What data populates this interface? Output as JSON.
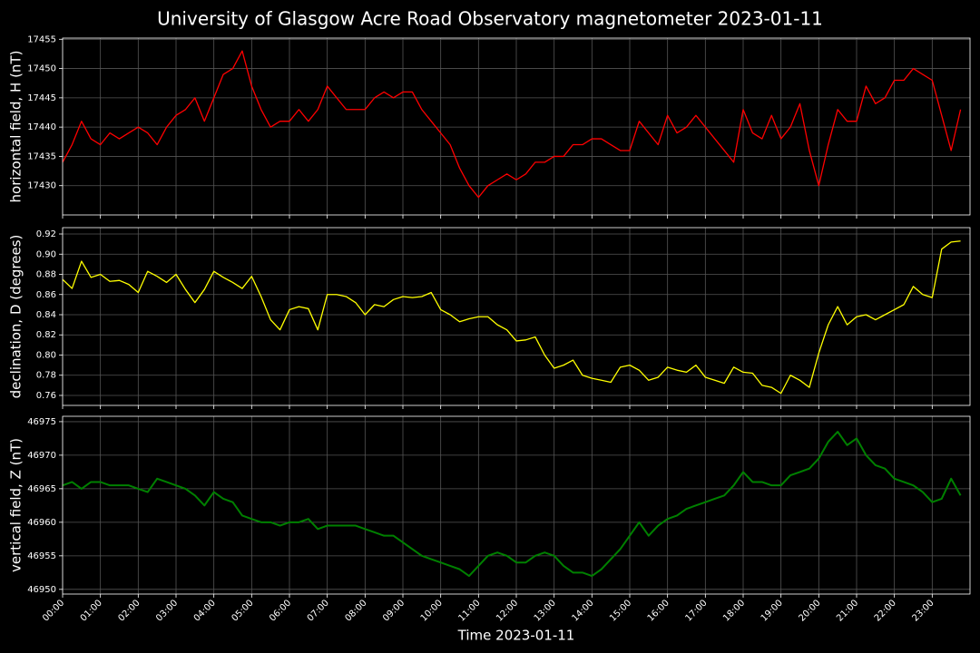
{
  "chart_data": {
    "type": "line",
    "title": "University of Glasgow Acre Road Observatory magnetometer 2023-01-11",
    "xlabel": "Time 2023-01-11",
    "x": [
      0,
      0.25,
      0.5,
      0.75,
      1,
      1.25,
      1.5,
      1.75,
      2,
      2.25,
      2.5,
      2.75,
      3,
      3.25,
      3.5,
      3.75,
      4,
      4.25,
      4.5,
      4.75,
      5,
      5.25,
      5.5,
      5.75,
      6,
      6.25,
      6.5,
      6.75,
      7,
      7.25,
      7.5,
      7.75,
      8,
      8.25,
      8.5,
      8.75,
      9,
      9.25,
      9.5,
      9.75,
      10,
      10.25,
      10.5,
      10.75,
      11,
      11.25,
      11.5,
      11.75,
      12,
      12.25,
      12.5,
      12.75,
      13,
      13.25,
      13.5,
      13.75,
      14,
      14.25,
      14.5,
      14.75,
      15,
      15.25,
      15.5,
      15.75,
      16,
      16.25,
      16.5,
      16.75,
      17,
      17.25,
      17.5,
      17.75,
      18,
      18.25,
      18.5,
      18.75,
      19,
      19.25,
      19.5,
      19.75,
      20,
      20.25,
      20.5,
      20.75,
      21,
      21.25,
      21.5,
      21.75,
      22,
      22.25,
      22.5,
      22.75,
      23,
      23.25,
      23.5,
      23.75
    ],
    "xlim": [
      0,
      24
    ],
    "xticks": [
      {
        "value": 0,
        "label": "00:00"
      },
      {
        "value": 1,
        "label": "01:00"
      },
      {
        "value": 2,
        "label": "02:00"
      },
      {
        "value": 3,
        "label": "03:00"
      },
      {
        "value": 4,
        "label": "04:00"
      },
      {
        "value": 5,
        "label": "05:00"
      },
      {
        "value": 6,
        "label": "06:00"
      },
      {
        "value": 7,
        "label": "07:00"
      },
      {
        "value": 8,
        "label": "08:00"
      },
      {
        "value": 9,
        "label": "09:00"
      },
      {
        "value": 10,
        "label": "10:00"
      },
      {
        "value": 11,
        "label": "11:00"
      },
      {
        "value": 12,
        "label": "12:00"
      },
      {
        "value": 13,
        "label": "13:00"
      },
      {
        "value": 14,
        "label": "14:00"
      },
      {
        "value": 15,
        "label": "15:00"
      },
      {
        "value": 16,
        "label": "16:00"
      },
      {
        "value": 17,
        "label": "17:00"
      },
      {
        "value": 18,
        "label": "18:00"
      },
      {
        "value": 19,
        "label": "19:00"
      },
      {
        "value": 20,
        "label": "20:00"
      },
      {
        "value": 21,
        "label": "21:00"
      },
      {
        "value": 22,
        "label": "22:00"
      },
      {
        "value": 23,
        "label": "23:00"
      }
    ],
    "grid": true,
    "panels": [
      {
        "ylabel": "horizontal field, H (nT)",
        "ylim": [
          17425,
          17455.2
        ],
        "yticks": [
          17430,
          17435,
          17440,
          17445,
          17450,
          17455
        ],
        "series": [
          {
            "color": "#ff0000",
            "values": [
              17434,
              17437,
              17441,
              17438,
              17437,
              17439,
              17438,
              17439,
              17440,
              17439,
              17437,
              17440,
              17442,
              17443,
              17445,
              17441,
              17445,
              17449,
              17450,
              17453,
              17447,
              17443,
              17440,
              17441,
              17441,
              17443,
              17441,
              17443,
              17447,
              17445,
              17443,
              17443,
              17443,
              17445,
              17446,
              17445,
              17446,
              17446,
              17443,
              17441,
              17439,
              17437,
              17433,
              17430,
              17428,
              17430,
              17431,
              17432,
              17431,
              17432,
              17434,
              17434,
              17435,
              17435,
              17437,
              17437,
              17438,
              17438,
              17437,
              17436,
              17436,
              17441,
              17439,
              17437,
              17442,
              17439,
              17440,
              17442,
              17440,
              17438,
              17436,
              17434,
              17443,
              17439,
              17438,
              17442,
              17438,
              17440,
              17444,
              17436,
              17430,
              17437,
              17443,
              17441,
              17441,
              17447,
              17444,
              17445,
              17448,
              17448,
              17450,
              17449,
              17448,
              17442,
              17436,
              17443
            ]
          }
        ]
      },
      {
        "ylabel": "declination, D (degrees)",
        "ylim": [
          0.7501,
          0.9263
        ],
        "yticks": [
          0.76,
          0.78,
          {
            "value": 0.8,
            "label": "0.80"
          },
          0.82,
          0.84,
          0.86,
          0.88,
          {
            "value": 0.9,
            "label": "0.90"
          },
          0.92
        ],
        "series": [
          {
            "color": "#ffff00",
            "values": [
              0.875,
              0.866,
              0.893,
              0.877,
              0.88,
              0.873,
              0.874,
              0.87,
              0.862,
              0.883,
              0.878,
              0.872,
              0.88,
              0.865,
              0.852,
              0.865,
              0.883,
              0.877,
              0.872,
              0.866,
              0.878,
              0.858,
              0.835,
              0.825,
              0.845,
              0.848,
              0.846,
              0.825,
              0.86,
              0.86,
              0.858,
              0.852,
              0.84,
              0.85,
              0.848,
              0.855,
              0.858,
              0.857,
              0.858,
              0.862,
              0.845,
              0.84,
              0.833,
              0.836,
              0.838,
              0.838,
              0.83,
              0.825,
              0.814,
              0.815,
              0.818,
              0.8,
              0.787,
              0.79,
              0.795,
              0.78,
              0.777,
              0.775,
              0.773,
              0.788,
              0.79,
              0.785,
              0.775,
              0.778,
              0.788,
              0.785,
              0.783,
              0.79,
              0.778,
              0.775,
              0.772,
              0.788,
              0.783,
              0.782,
              0.77,
              0.768,
              0.762,
              0.78,
              0.775,
              0.768,
              0.802,
              0.83,
              0.848,
              0.83,
              0.838,
              0.84,
              0.835,
              0.84,
              0.845,
              0.85,
              0.868,
              0.86,
              0.857,
              0.905,
              0.912,
              0.913
            ]
          }
        ]
      },
      {
        "ylabel": "vertical field, Z (nT)",
        "ylim": [
          46949.3,
          46975.8
        ],
        "yticks": [
          46950,
          46955,
          46960,
          46965,
          46970,
          46975
        ],
        "series": [
          {
            "color": "#008000",
            "values": [
              46965.5,
              46966,
              46965,
              46966,
              46966,
              46965.5,
              46965.5,
              46965.5,
              46965,
              46964.5,
              46966.5,
              46966,
              46965.5,
              46965,
              46964,
              46962.5,
              46964.5,
              46963.5,
              46963,
              46961,
              46960.5,
              46960,
              46960,
              46959.5,
              46960,
              46960,
              46960.5,
              46959,
              46959.5,
              46959.5,
              46959.5,
              46959.5,
              46959,
              46958.5,
              46958,
              46958,
              46957,
              46956,
              46955,
              46954.5,
              46954,
              46953.5,
              46953,
              46952,
              46953.5,
              46955,
              46955.5,
              46955,
              46954,
              46954,
              46955,
              46955.5,
              46955,
              46953.5,
              46952.5,
              46952.5,
              46952,
              46953,
              46954.5,
              46956,
              46958,
              46960,
              46958,
              46959.5,
              46960.5,
              46961,
              46962,
              46962.5,
              46963,
              46963.5,
              46964,
              46965.5,
              46967.5,
              46966,
              46966,
              46965.5,
              46965.5,
              46967,
              46967.5,
              46968,
              46969.5,
              46972,
              46973.5,
              46971.5,
              46972.5,
              46970,
              46968.5,
              46968,
              46966.5,
              46966,
              46965.5,
              46964.5,
              46963,
              46963.5,
              46966.5,
              46964
            ]
          }
        ]
      }
    ]
  }
}
